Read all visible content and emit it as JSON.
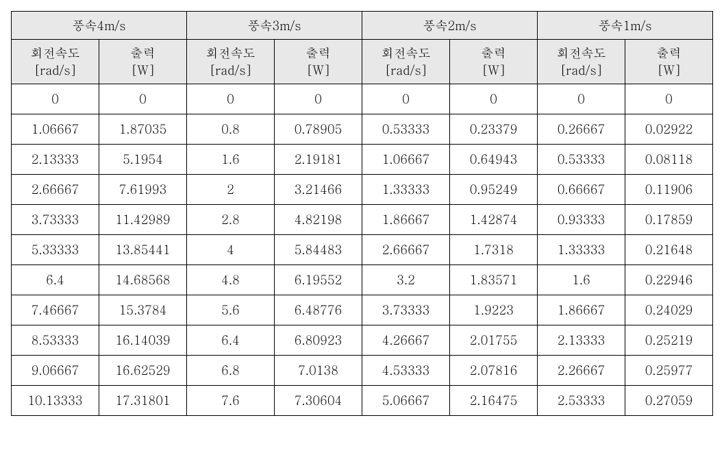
{
  "table": {
    "background_color": "#ffffff",
    "header_bg": "#e8e8e8",
    "border_color": "#000000",
    "font_family": "Batang, serif",
    "group_headers": [
      "풍속4m/s",
      "풍속3m/s",
      "풍속2m/s",
      "풍속1m/s"
    ],
    "sub_headers": {
      "speed_label_line1": "회전속도",
      "speed_label_line2": "[rad/s]",
      "power_label_line1": "출력",
      "power_label_line2": "[W]"
    },
    "rows": [
      {
        "c": [
          "0",
          "0",
          "0",
          "0",
          "0",
          "0",
          "0",
          "0"
        ]
      },
      {
        "c": [
          "1.06667",
          "1.87035",
          "0.8",
          "0.78905",
          "0.53333",
          "0.23379",
          "0.26667",
          "0.02922"
        ]
      },
      {
        "c": [
          "2.13333",
          "5.1954",
          "1.6",
          "2.19181",
          "1.06667",
          "0.64943",
          "0.53333",
          "0.08118"
        ]
      },
      {
        "c": [
          "2.66667",
          "7.61993",
          "2",
          "3.21466",
          "1.33333",
          "0.95249",
          "0.66667",
          "0.11906"
        ]
      },
      {
        "c": [
          "3.73333",
          "11.42989",
          "2.8",
          "4.82198",
          "1.86667",
          "1.42874",
          "0.93333",
          "0.17859"
        ]
      },
      {
        "c": [
          "5.33333",
          "13.85441",
          "4",
          "5.84483",
          "2.66667",
          "1.7318",
          "1.33333",
          "0.21648"
        ]
      },
      {
        "c": [
          "6.4",
          "14.68568",
          "4.8",
          "6.19552",
          "3.2",
          "1.83571",
          "1.6",
          "0.22946"
        ]
      },
      {
        "c": [
          "7.46667",
          "15.3784",
          "5.6",
          "6.48776",
          "3.73333",
          "1.9223",
          "1.86667",
          "0.24029"
        ]
      },
      {
        "c": [
          "8.53333",
          "16.14039",
          "6.4",
          "6.80923",
          "4.26667",
          "2.01755",
          "2.13333",
          "0.25219"
        ]
      },
      {
        "c": [
          "9.06667",
          "16.62529",
          "6.8",
          "7.0138",
          "4.53333",
          "2.07816",
          "2.26667",
          "0.25977"
        ]
      },
      {
        "c": [
          "10.13333",
          "17.31801",
          "7.6",
          "7.30604",
          "5.06667",
          "2.16475",
          "2.53333",
          "0.27059"
        ]
      }
    ]
  }
}
